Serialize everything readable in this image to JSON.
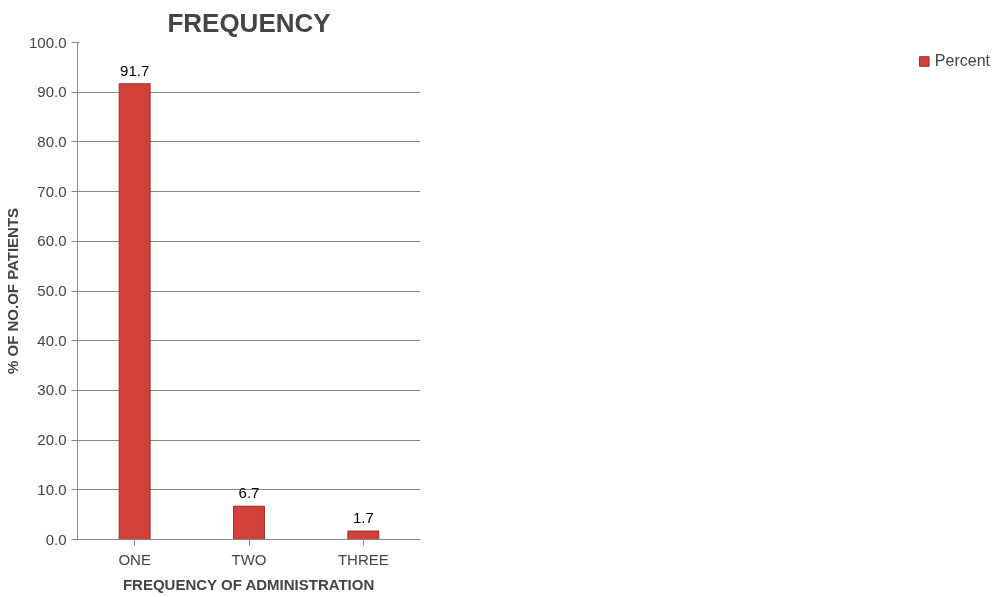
{
  "chart_data": {
    "type": "bar",
    "title": "FREQUENCY",
    "xlabel": "FREQUENCY OF ADMINISTRATION",
    "ylabel": "% OF NO.OF PATIENTS",
    "categories": [
      "ONE",
      "TWO",
      "THREE"
    ],
    "series": [
      {
        "name": "Percent",
        "color": "#d2403a",
        "values": [
          91.7,
          6.7,
          1.7
        ]
      }
    ],
    "ylim": [
      0,
      100
    ],
    "yticks": [
      {
        "value": 0,
        "label": "0.0"
      },
      {
        "value": 10,
        "label": "10.0"
      },
      {
        "value": 20,
        "label": "20.0"
      },
      {
        "value": 30,
        "label": "30.0"
      },
      {
        "value": 40,
        "label": "40.0"
      },
      {
        "value": 50,
        "label": "50.0"
      },
      {
        "value": 60,
        "label": "60.0"
      },
      {
        "value": 70,
        "label": "70.0"
      },
      {
        "value": 80,
        "label": "80.0"
      },
      {
        "value": 90,
        "label": "90.0"
      },
      {
        "value": 100,
        "label": "100.0"
      }
    ],
    "grid": "y",
    "legend": "right",
    "data_labels": true
  }
}
